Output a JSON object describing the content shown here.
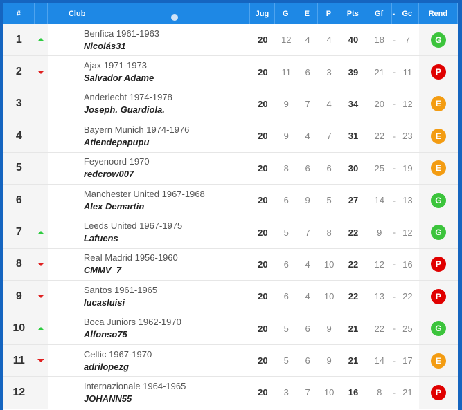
{
  "header": {
    "pos": "#",
    "club": "Club",
    "jug": "Jug",
    "g": "G",
    "e": "E",
    "p": "P",
    "pts": "Pts",
    "gf": "Gf",
    "sep": "-",
    "gc": "Gc",
    "rend": "Rend"
  },
  "colors": {
    "G": "#3cc43c",
    "E": "#f39c12",
    "P": "#e00000",
    "up": "#2ecc40",
    "down": "#e02020"
  },
  "rows": [
    {
      "pos": "1",
      "trend": "up",
      "club": "Benfica 1961-1963",
      "user": "Nicolás31",
      "jug": "20",
      "g": "12",
      "e": "4",
      "p": "4",
      "pts": "40",
      "gf": "18",
      "sep": "-",
      "gc": "7",
      "rend": "G"
    },
    {
      "pos": "2",
      "trend": "down",
      "club": "Ajax 1971-1973",
      "user": "Salvador Adame",
      "jug": "20",
      "g": "11",
      "e": "6",
      "p": "3",
      "pts": "39",
      "gf": "21",
      "sep": "-",
      "gc": "11",
      "rend": "P"
    },
    {
      "pos": "3",
      "trend": "none",
      "club": "Anderlecht 1974-1978",
      "user": "Joseph. Guardiola.",
      "jug": "20",
      "g": "9",
      "e": "7",
      "p": "4",
      "pts": "34",
      "gf": "20",
      "sep": "-",
      "gc": "12",
      "rend": "E"
    },
    {
      "pos": "4",
      "trend": "none",
      "club": "Bayern Munich 1974-1976",
      "user": "Atiendepapupu",
      "jug": "20",
      "g": "9",
      "e": "4",
      "p": "7",
      "pts": "31",
      "gf": "22",
      "sep": "-",
      "gc": "23",
      "rend": "E"
    },
    {
      "pos": "5",
      "trend": "none",
      "club": "Feyenoord 1970",
      "user": "redcrow007",
      "jug": "20",
      "g": "8",
      "e": "6",
      "p": "6",
      "pts": "30",
      "gf": "25",
      "sep": "-",
      "gc": "19",
      "rend": "E"
    },
    {
      "pos": "6",
      "trend": "none",
      "club": "Manchester United 1967-1968",
      "user": "Alex Demartin",
      "jug": "20",
      "g": "6",
      "e": "9",
      "p": "5",
      "pts": "27",
      "gf": "14",
      "sep": "-",
      "gc": "13",
      "rend": "G"
    },
    {
      "pos": "7",
      "trend": "up",
      "club": "Leeds United 1967-1975",
      "user": "Lafuens",
      "jug": "20",
      "g": "5",
      "e": "7",
      "p": "8",
      "pts": "22",
      "gf": "9",
      "sep": "-",
      "gc": "12",
      "rend": "G"
    },
    {
      "pos": "8",
      "trend": "down",
      "club": "Real Madrid 1956-1960",
      "user": "CMMV_7",
      "jug": "20",
      "g": "6",
      "e": "4",
      "p": "10",
      "pts": "22",
      "gf": "12",
      "sep": "-",
      "gc": "16",
      "rend": "P"
    },
    {
      "pos": "9",
      "trend": "down",
      "club": "Santos 1961-1965",
      "user": "lucasluisi",
      "jug": "20",
      "g": "6",
      "e": "4",
      "p": "10",
      "pts": "22",
      "gf": "13",
      "sep": "-",
      "gc": "22",
      "rend": "P"
    },
    {
      "pos": "10",
      "trend": "up",
      "club": "Boca Juniors 1962-1970",
      "user": "Alfonso75",
      "jug": "20",
      "g": "5",
      "e": "6",
      "p": "9",
      "pts": "21",
      "gf": "22",
      "sep": "-",
      "gc": "25",
      "rend": "G"
    },
    {
      "pos": "11",
      "trend": "down",
      "club": "Celtic 1967-1970",
      "user": "adrilopezg",
      "jug": "20",
      "g": "5",
      "e": "6",
      "p": "9",
      "pts": "21",
      "gf": "14",
      "sep": "-",
      "gc": "17",
      "rend": "E"
    },
    {
      "pos": "12",
      "trend": "none",
      "club": "Internazionale 1964-1965",
      "user": "JOHANN55",
      "jug": "20",
      "g": "3",
      "e": "7",
      "p": "10",
      "pts": "16",
      "gf": "8",
      "sep": "-",
      "gc": "21",
      "rend": "P"
    }
  ]
}
